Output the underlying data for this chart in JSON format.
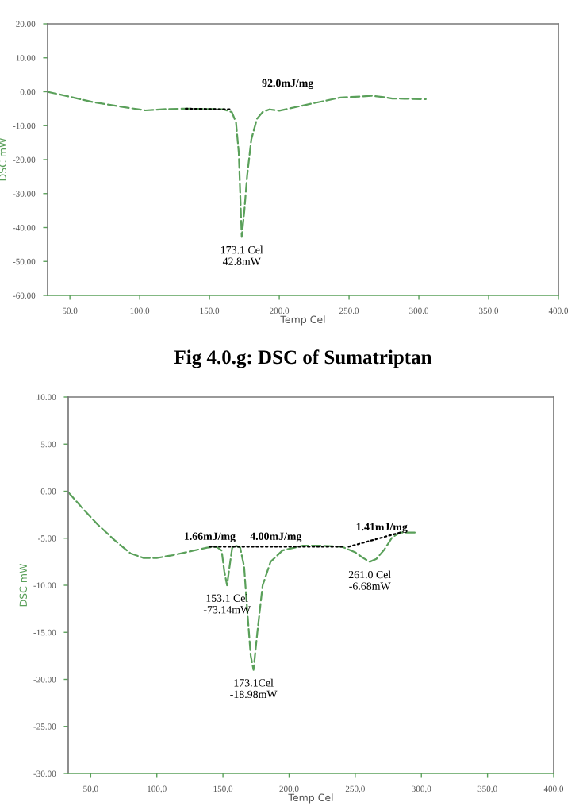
{
  "chart_data": [
    {
      "type": "line",
      "title": "Fig 4.0.g: DSC of Sumatriptan",
      "xlabel": "Temp Cel",
      "ylabel": "DSC mW",
      "xlim": [
        34,
        400
      ],
      "ylim": [
        -60,
        20
      ],
      "xticks": [
        {
          "value": 50,
          "label": "50.0"
        },
        {
          "value": 100,
          "label": "100.0"
        },
        {
          "value": 150,
          "label": "150.0"
        },
        {
          "value": 200,
          "label": "200.0"
        },
        {
          "value": 250,
          "label": "250.0"
        },
        {
          "value": 300,
          "label": "300.0"
        },
        {
          "value": 350,
          "label": "350.0"
        },
        {
          "value": 400,
          "label": "400.0"
        }
      ],
      "yticks": [
        {
          "value": 20,
          "label": "20.00"
        },
        {
          "value": 10,
          "label": "10.00"
        },
        {
          "value": 0,
          "label": "0.00"
        },
        {
          "value": -10,
          "label": "-10.00"
        },
        {
          "value": -20,
          "label": "-20.00"
        },
        {
          "value": -30,
          "label": "-30.00"
        },
        {
          "value": -40,
          "label": "-40.00"
        },
        {
          "value": -50,
          "label": "-50.00"
        },
        {
          "value": -60,
          "label": "-60.00"
        }
      ],
      "grid": false,
      "legend": false,
      "line_style": "dashed",
      "marker": "none",
      "series": [
        {
          "color": "#5aa05a",
          "x": [
            34,
            50,
            67,
            85,
            104,
            120,
            133,
            150,
            160,
            166,
            169,
            171,
            173.1,
            175,
            177,
            180,
            184,
            188,
            193,
            200,
            222,
            244,
            258,
            266,
            275,
            281,
            305
          ],
          "values": [
            0,
            -1.5,
            -3.1,
            -4.3,
            -5.5,
            -5.1,
            -5.0,
            -5.1,
            -5.2,
            -6.0,
            -9,
            -18,
            -42.8,
            -35,
            -24.7,
            -14,
            -8,
            -6,
            -5.2,
            -5.6,
            -3.6,
            -1.7,
            -1.4,
            -1.2,
            -1.6,
            -2,
            -2.2
          ]
        },
        {
          "color": "#000000",
          "line_style": "dotted",
          "x": [
            133,
            165
          ],
          "values": [
            -5.0,
            -5.2
          ]
        }
      ],
      "annotations": [
        "92.0mJ/mg",
        {
          "text": "173.1 Cel\n42.8mW",
          "x": 173.1,
          "y": -42.8
        }
      ]
    },
    {
      "type": "line",
      "xlabel": "Temp Cel",
      "ylabel": "DSC mW",
      "xlim": [
        33,
        400
      ],
      "ylim": [
        -30,
        10
      ],
      "xticks": [
        {
          "value": 50,
          "label": "50.0"
        },
        {
          "value": 100,
          "label": "100.0"
        },
        {
          "value": 150,
          "label": "150.0"
        },
        {
          "value": 200,
          "label": "200.0"
        },
        {
          "value": 250,
          "label": "250.0"
        },
        {
          "value": 300,
          "label": "300.0"
        },
        {
          "value": 350,
          "label": "350.0"
        },
        {
          "value": 400,
          "label": "400.0"
        }
      ],
      "yticks": [
        {
          "value": 10,
          "label": "10.00"
        },
        {
          "value": 5,
          "label": "5.00"
        },
        {
          "value": 0,
          "label": "0.00"
        },
        {
          "value": -5,
          "label": "-5.00"
        },
        {
          "value": -10,
          "label": "-10.00"
        },
        {
          "value": -15,
          "label": "-15.00"
        },
        {
          "value": -20,
          "label": "-20.00"
        },
        {
          "value": -25,
          "label": "-25.00"
        },
        {
          "value": -30,
          "label": "-30.00"
        }
      ],
      "grid": false,
      "legend": false,
      "line_style": "dashed",
      "marker": "none",
      "series": [
        {
          "color": "#5aa05a",
          "x": [
            33,
            45,
            55,
            68,
            80,
            90,
            100,
            112,
            125,
            138,
            145,
            149,
            151,
            153.1,
            155,
            157,
            160,
            163,
            166,
            168,
            171,
            173.1,
            176,
            180,
            186,
            195,
            210,
            225,
            240,
            250,
            256,
            261,
            266,
            272,
            278,
            284,
            295
          ],
          "values": [
            -0.1,
            -2,
            -3.5,
            -5.2,
            -6.6,
            -7.1,
            -7.1,
            -6.8,
            -6.4,
            -6.0,
            -5.9,
            -6.3,
            -8.5,
            -10.0,
            -8,
            -6.0,
            -5.8,
            -6.0,
            -8,
            -12,
            -17.5,
            -19.0,
            -15,
            -10,
            -7.5,
            -6.3,
            -5.8,
            -5.8,
            -5.9,
            -6.5,
            -7.1,
            -7.5,
            -7.2,
            -6.2,
            -4.9,
            -4.4,
            -4.4
          ]
        },
        {
          "color": "#000000",
          "line_style": "dotted",
          "x": [
            140,
            240
          ],
          "values": [
            -5.9,
            -5.9
          ]
        },
        {
          "color": "#000000",
          "line_style": "dotted",
          "x": [
            245,
            284
          ],
          "values": [
            -5.9,
            -4.4
          ]
        }
      ],
      "annotations": [
        {
          "text": "1.66mJ/mg",
          "x": 140,
          "y": -5.9
        },
        {
          "text": "4.00mJ/mg",
          "x": 190,
          "y": -5.9
        },
        {
          "text": "1.41mJ/mg",
          "x": 270,
          "y": -4.9
        },
        {
          "text": "153.1 Cel\n-73.14mW",
          "x": 153.1,
          "y": -10.0
        },
        {
          "text": "173.1Cel\n-18.98mW",
          "x": 173.1,
          "y": -19.0
        },
        {
          "text": "261.0 Cel\n-6.68mW",
          "x": 261,
          "y": -7.5
        }
      ]
    }
  ]
}
